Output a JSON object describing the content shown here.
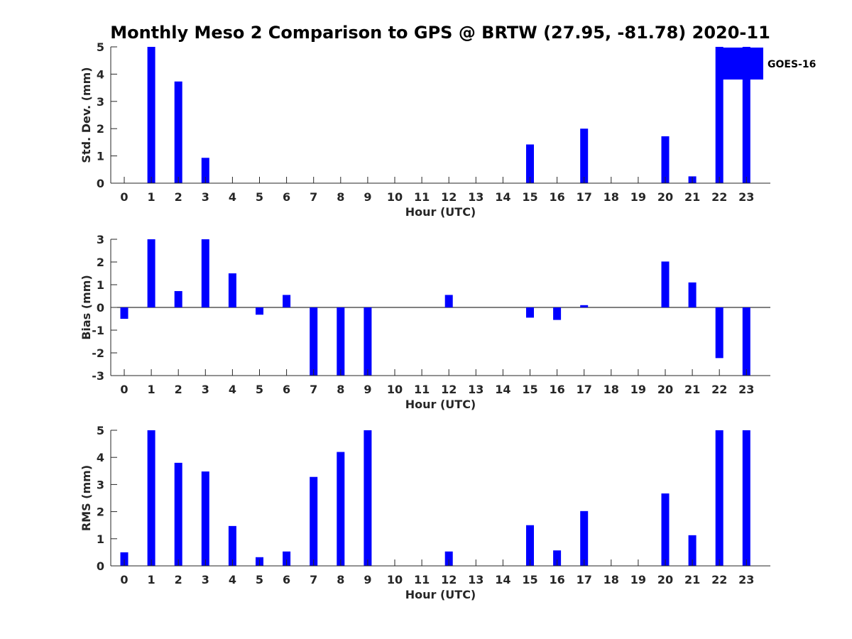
{
  "chart_data": {
    "type": "bar",
    "title": "Monthly Meso 2 Comparison to GPS @ BRTW (27.95, -81.78) 2020-11",
    "legend": {
      "label": "GOES-16",
      "position": "top-right"
    },
    "bar_color": "#0000ff",
    "categories": [
      "0",
      "1",
      "2",
      "3",
      "4",
      "5",
      "6",
      "7",
      "8",
      "9",
      "10",
      "11",
      "12",
      "13",
      "14",
      "15",
      "16",
      "17",
      "18",
      "19",
      "20",
      "21",
      "22",
      "23"
    ],
    "panels": [
      {
        "ylabel": "Std. Dev. (mm)",
        "xlabel": "Hour (UTC)",
        "ylim": [
          0,
          5
        ],
        "yticks": [
          0,
          1,
          2,
          3,
          4,
          5
        ],
        "values": [
          0,
          5,
          3.73,
          0.93,
          0,
          0,
          0,
          0,
          0,
          0,
          0,
          0,
          0,
          0,
          0,
          1.42,
          0,
          2.0,
          0,
          0,
          1.72,
          0.25,
          5,
          5
        ]
      },
      {
        "ylabel": "Bias (mm)",
        "xlabel": "Hour (UTC)",
        "ylim": [
          -3,
          3
        ],
        "yticks": [
          -3,
          -2,
          -1,
          0,
          1,
          2,
          3
        ],
        "values": [
          -0.5,
          3,
          0.72,
          3,
          1.5,
          -0.32,
          0.55,
          -3,
          -3,
          -3,
          0,
          0,
          0.55,
          0,
          0,
          -0.45,
          -0.55,
          0.1,
          0,
          0,
          2.02,
          1.1,
          -2.23,
          -3
        ]
      },
      {
        "ylabel": "RMS (mm)",
        "xlabel": "Hour (UTC)",
        "ylim": [
          0,
          5
        ],
        "yticks": [
          0,
          1,
          2,
          3,
          4,
          5
        ],
        "values": [
          0.5,
          5,
          3.8,
          3.48,
          1.47,
          0.32,
          0.53,
          3.28,
          4.2,
          5,
          0,
          0,
          0.53,
          0,
          0,
          1.5,
          0.57,
          2.02,
          0,
          0,
          2.67,
          1.13,
          5,
          5
        ]
      }
    ]
  }
}
